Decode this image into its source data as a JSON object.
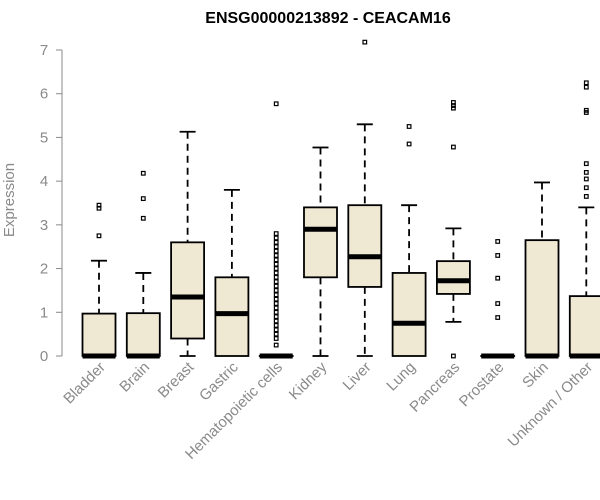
{
  "chart_data": {
    "type": "boxplot",
    "title": "ENSG00000213892 - CEACAM16",
    "xlabel": "",
    "ylabel": "Expression",
    "ylim": [
      0,
      7
    ],
    "yticks": [
      0,
      1,
      2,
      3,
      4,
      5,
      6,
      7
    ],
    "grid": false,
    "colors": {
      "box_fill": "#efe8d2",
      "box_stroke": "#000000",
      "axis": "#8a8a8a",
      "label": "#8a8a8a"
    },
    "categories": [
      "Bladder",
      "Brain",
      "Breast",
      "Gastric",
      "Hematopoietic cells",
      "Kidney",
      "Liver",
      "Lung",
      "Pancreas",
      "Prostate",
      "Skin",
      "Unknown / Other"
    ],
    "series": [
      {
        "name": "Bladder",
        "whisker_low": 0,
        "q1": 0,
        "median": 0,
        "q3": 0.97,
        "whisker_high": 2.18,
        "outliers": [
          2.75,
          3.38,
          3.45
        ]
      },
      {
        "name": "Brain",
        "whisker_low": 0,
        "q1": 0,
        "median": 0,
        "q3": 0.98,
        "whisker_high": 1.9,
        "outliers": [
          3.15,
          3.6,
          4.18
        ]
      },
      {
        "name": "Breast",
        "whisker_low": 0,
        "q1": 0.4,
        "median": 1.35,
        "q3": 2.6,
        "whisker_high": 5.13,
        "outliers": []
      },
      {
        "name": "Gastric",
        "whisker_low": 0,
        "q1": 0,
        "median": 0.97,
        "q3": 1.8,
        "whisker_high": 3.8,
        "outliers": []
      },
      {
        "name": "Hematopoietic cells",
        "whisker_low": 0,
        "q1": 0,
        "median": 0,
        "q3": 0,
        "whisker_high": 0,
        "outliers": [
          0.25,
          0.4,
          0.5,
          0.6,
          0.7,
          0.8,
          0.9,
          1.0,
          1.1,
          1.2,
          1.3,
          1.4,
          1.5,
          1.6,
          1.7,
          1.8,
          1.9,
          2.0,
          2.1,
          2.2,
          2.3,
          2.4,
          2.5,
          2.6,
          2.7,
          2.8,
          5.77
        ]
      },
      {
        "name": "Kidney",
        "whisker_low": 0,
        "q1": 1.8,
        "median": 2.9,
        "q3": 3.4,
        "whisker_high": 4.77,
        "outliers": []
      },
      {
        "name": "Liver",
        "whisker_low": 0,
        "q1": 1.58,
        "median": 2.27,
        "q3": 3.45,
        "whisker_high": 5.3,
        "outliers": [
          7.18
        ]
      },
      {
        "name": "Lung",
        "whisker_low": 0,
        "q1": 0,
        "median": 0.75,
        "q3": 1.9,
        "whisker_high": 3.45,
        "outliers": [
          4.85,
          5.25
        ]
      },
      {
        "name": "Pancreas",
        "whisker_low": 0.78,
        "q1": 1.42,
        "median": 1.72,
        "q3": 2.17,
        "whisker_high": 2.92,
        "outliers": [
          0,
          4.78,
          5.67,
          5.73,
          5.8
        ]
      },
      {
        "name": "Prostate",
        "whisker_low": 0,
        "q1": 0,
        "median": 0,
        "q3": 0,
        "whisker_high": 0,
        "outliers": [
          0.88,
          1.2,
          1.78,
          2.3,
          2.62
        ]
      },
      {
        "name": "Skin",
        "whisker_low": 0,
        "q1": 0,
        "median": 0,
        "q3": 2.65,
        "whisker_high": 3.97,
        "outliers": []
      },
      {
        "name": "Unknown / Other",
        "whisker_low": 0,
        "q1": 0,
        "median": 0,
        "q3": 1.37,
        "whisker_high": 3.4,
        "outliers": [
          3.65,
          3.85,
          4.05,
          4.2,
          4.4,
          5.57,
          5.62,
          6.15,
          6.25
        ]
      }
    ]
  }
}
